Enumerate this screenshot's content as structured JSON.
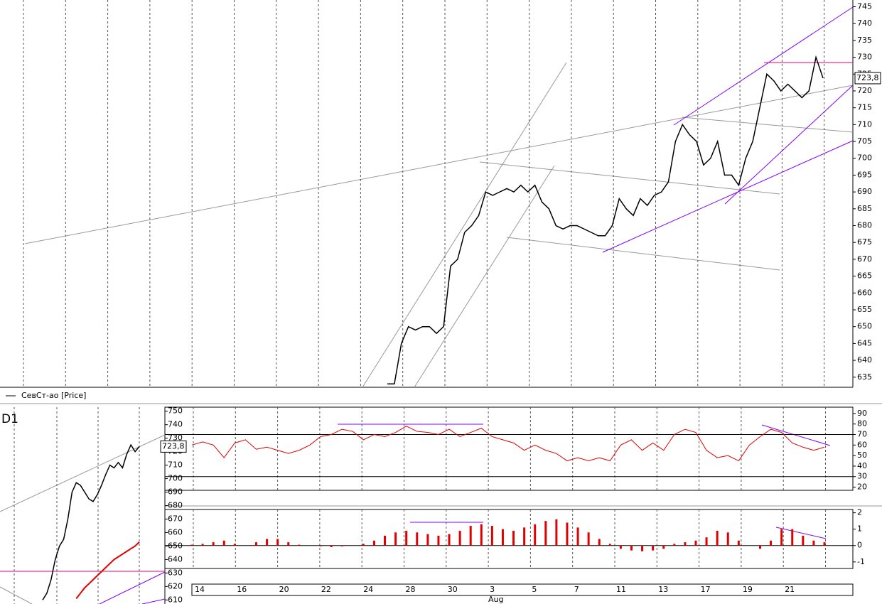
{
  "chart_data": [
    {
      "type": "line",
      "name": "СевСт-ао [Price]",
      "color": "#000000",
      "values": [
        633,
        633,
        645,
        650,
        649,
        650,
        650,
        648,
        650,
        668,
        670,
        678,
        680,
        683,
        690,
        689,
        690,
        691,
        690,
        692,
        690,
        692,
        687,
        685,
        680,
        679,
        680,
        680,
        679,
        678,
        677,
        677,
        680,
        688,
        685,
        683,
        688,
        686,
        689,
        690,
        693,
        705,
        710,
        707,
        705,
        698,
        700,
        705,
        695,
        695,
        692,
        700,
        705,
        715,
        725,
        723,
        720,
        722,
        720,
        718,
        720,
        730,
        723.8
      ],
      "ylim": [
        632,
        747
      ],
      "yticks": [
        635,
        640,
        645,
        650,
        655,
        660,
        665,
        670,
        675,
        680,
        685,
        690,
        695,
        700,
        705,
        710,
        715,
        720,
        725,
        730,
        735,
        740,
        745
      ],
      "last_price": {
        "value": 723.8,
        "label": "723,8"
      },
      "x_labels": [
        "14",
        "16",
        "20",
        "22",
        "24",
        "28",
        "30",
        "3",
        "5",
        "7",
        "11",
        "13",
        "17",
        "19",
        "21"
      ],
      "x_sublabel": "Aug",
      "grid": true
    },
    {
      "type": "line",
      "title": "D1",
      "series": [
        {
          "color": "#000000",
          "values": [
            610,
            615,
            625,
            640,
            650,
            655,
            670,
            690,
            697,
            695,
            690,
            685,
            683,
            688,
            695,
            703,
            710,
            708,
            712,
            708,
            718,
            725,
            720,
            723.8
          ]
        },
        {
          "color": "#e00000",
          "values": [
            null,
            null,
            null,
            null,
            null,
            null,
            null,
            null,
            611,
            615,
            619,
            622,
            625,
            628,
            631,
            634,
            637,
            640,
            642,
            644,
            646,
            648,
            650,
            653
          ]
        }
      ],
      "ylim": [
        607,
        753
      ],
      "yticks": [
        610,
        620,
        630,
        640,
        650,
        660,
        670,
        680,
        690,
        700,
        710,
        720,
        730,
        740,
        750
      ],
      "last_price": {
        "value": 723.8,
        "label": "723,8"
      }
    },
    {
      "type": "line",
      "color": "#e00000",
      "values": [
        60,
        63,
        60,
        48,
        62,
        65,
        56,
        58,
        55,
        52,
        55,
        60,
        68,
        70,
        75,
        73,
        65,
        70,
        68,
        72,
        78,
        73,
        72,
        70,
        75,
        68,
        72,
        76,
        68,
        65,
        62,
        55,
        60,
        55,
        52,
        45,
        48,
        45,
        48,
        45,
        60,
        65,
        55,
        62,
        55,
        70,
        75,
        72,
        55,
        48,
        50,
        45,
        60,
        68,
        75,
        72,
        62,
        58,
        55,
        58
      ],
      "ylim": [
        17,
        96
      ],
      "yticks": [
        20,
        30,
        40,
        50,
        60,
        70,
        80,
        90
      ],
      "levels": [
        30,
        70
      ]
    },
    {
      "type": "bar",
      "color": "#e00000",
      "values": [
        0.05,
        0.1,
        0.2,
        0.3,
        0.1,
        0,
        0.2,
        0.4,
        0.4,
        0.2,
        0.05,
        0,
        -0.05,
        -0.1,
        -0.05,
        0,
        0.1,
        0.3,
        0.6,
        0.8,
        0.9,
        0.8,
        0.7,
        0.6,
        0.7,
        0.9,
        1.2,
        1.3,
        1.2,
        1.0,
        0.9,
        1.1,
        1.3,
        1.5,
        1.6,
        1.4,
        1.1,
        0.8,
        0.4,
        0.1,
        -0.2,
        -0.3,
        -0.35,
        -0.3,
        -0.2,
        0.1,
        0.2,
        0.3,
        0.5,
        0.9,
        0.8,
        0.3,
        0,
        -0.2,
        0.3,
        1.0,
        1.0,
        0.6,
        0.3,
        0.2
      ],
      "ylim": [
        -1.4,
        2.2
      ],
      "yticks": [
        -1,
        0,
        1,
        2
      ]
    }
  ]
}
